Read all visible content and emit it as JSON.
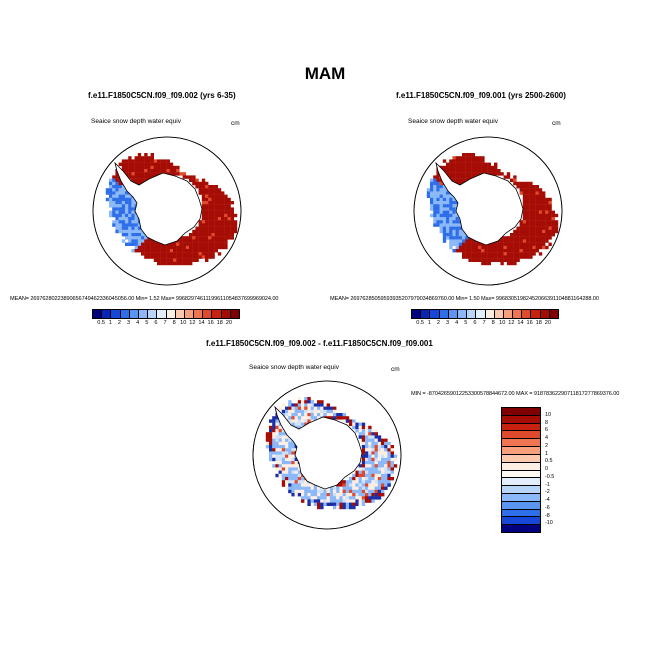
{
  "figure": {
    "title": "MAM"
  },
  "panels": {
    "left": {
      "title": "f.e11.F1850C5CN.f09_f09.002 (yrs 6-35)",
      "variable": "Seaice snow depth water equiv",
      "units": "cm",
      "stats": "MEAN= 26976280223890656749462336045056.00  Min=   1.52  Max= 99682974611199611054837699969024.00"
    },
    "right": {
      "title": "f.e11.F1850C5CN.f09_f09.001 (yrs 2500-2600)",
      "variable": "Seaice snow depth water equiv",
      "units": "cm",
      "stats": "MEAN= 26976285059593935207979034869760.00  Min=   1.50  Max= 99683051982452066391104881164288.00"
    },
    "diff": {
      "title": "f.e11.F1850C5CN.f09_f09.002 - f.e11.F1850C5CN.f09_f09.001",
      "variable": "Seaice snow depth water equiv",
      "units": "cm",
      "stats": "MIN = -87042659012253300578844672.00  MAX = 91878362290711817277869376.00"
    }
  },
  "colorbars": {
    "absolute": {
      "labels": [
        "0.5",
        "1",
        "2",
        "3",
        "4",
        "5",
        "6",
        "7",
        "8",
        "10",
        "12",
        "14",
        "16",
        "18",
        "20"
      ],
      "colors": [
        "#00007f",
        "#0a24b4",
        "#1747d6",
        "#2f6ee9",
        "#5b95f2",
        "#8ab8f8",
        "#b7d5fb",
        "#e3eefd",
        "#fdeee3",
        "#fcc9ae",
        "#f8a07c",
        "#ef7552",
        "#df4a2c",
        "#c6220f",
        "#a50d04",
        "#7f0000"
      ]
    },
    "difference": {
      "labels": [
        "10",
        "8",
        "6",
        "4",
        "2",
        "1",
        "0.5",
        "0",
        "-0.5",
        "-1",
        "-2",
        "-4",
        "-6",
        "-8",
        "-10"
      ],
      "colors": [
        "#7f0000",
        "#a50d04",
        "#c6220f",
        "#df4a2c",
        "#ef7552",
        "#f8a07c",
        "#fcc9ae",
        "#fdeee3",
        "#fdf8f2",
        "#e3eefd",
        "#b7d5fb",
        "#8ab8f8",
        "#5b95f2",
        "#2f6ee9",
        "#1747d6",
        "#00007f"
      ]
    }
  },
  "map_colors": {
    "high": "#a50d04",
    "mid_high": "#df4a2c",
    "low": "#2f6ee9",
    "mid_low": "#8ab8f8",
    "near_zero": "#fdeee3",
    "land": "#ffffff"
  }
}
